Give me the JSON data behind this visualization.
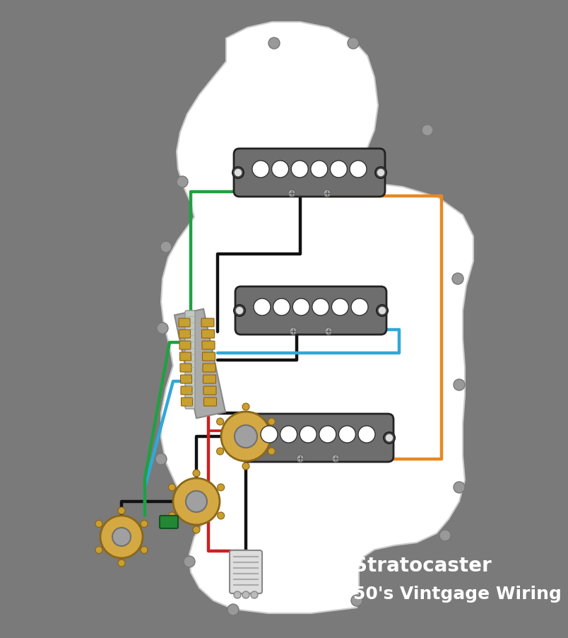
{
  "bg_color": "#7A7A7A",
  "pickguard_color": "#FFFFFF",
  "pickup_body_color": "#6E6E6E",
  "pickup_hole_color": "#FFFFFF",
  "wire_colors": {
    "black": "#111111",
    "green": "#20A040",
    "orange": "#E88820",
    "blue": "#30A8D8",
    "red": "#CC2020"
  },
  "title_line1": "Stratocaster",
  "title_line2": "50's Vintgage Wiring",
  "title_color": "#FFFFFF",
  "title_fontsize": 20,
  "fig_width": 7.36,
  "fig_height": 8.83
}
